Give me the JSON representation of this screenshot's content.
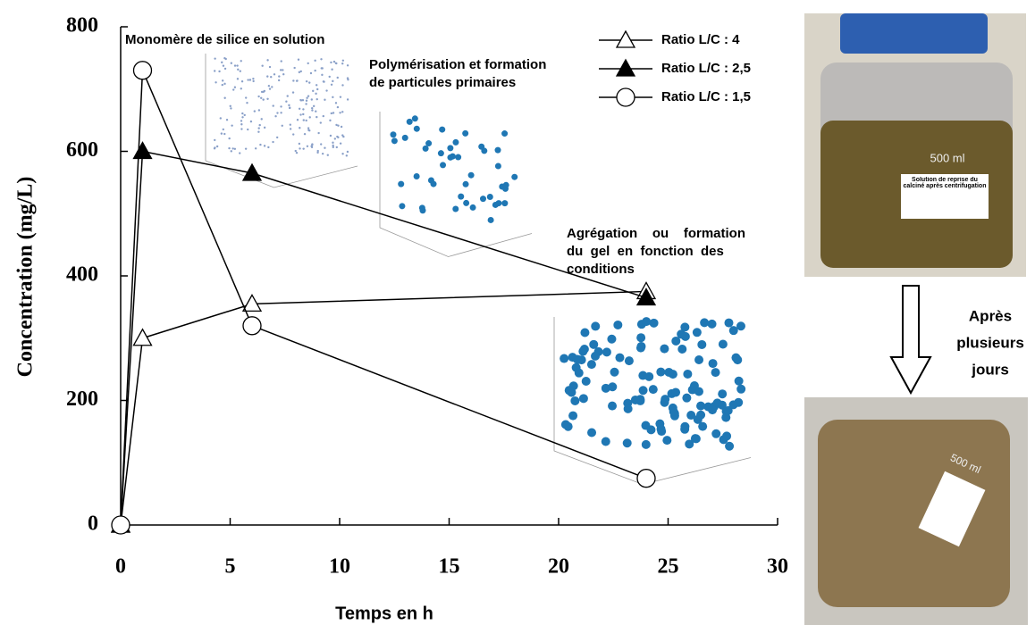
{
  "chart_data": {
    "type": "line",
    "xlabel": "Temps en h",
    "ylabel": "Concentration (mg/L)",
    "xlim": [
      0,
      30
    ],
    "ylim": [
      0,
      800
    ],
    "xticks": [
      0,
      5,
      10,
      15,
      20,
      25,
      30
    ],
    "yticks": [
      0,
      200,
      400,
      600,
      800
    ],
    "legend": "upper right",
    "series": [
      {
        "name": "Ratio L/C : 4",
        "marker": "triangle",
        "filled": false,
        "color": "#000000",
        "x": [
          0,
          1,
          6,
          24
        ],
        "values": [
          0,
          300,
          355,
          375
        ]
      },
      {
        "name": "Ratio L/C : 2,5",
        "marker": "triangle",
        "filled": true,
        "color": "#000000",
        "x": [
          0,
          1,
          6,
          24
        ],
        "values": [
          0,
          600,
          565,
          365
        ]
      },
      {
        "name": "Ratio L/C : 1,5",
        "marker": "circle",
        "filled": false,
        "color": "#000000",
        "x": [
          0,
          1,
          6,
          24
        ],
        "values": [
          0,
          730,
          320,
          75
        ]
      }
    ],
    "annotations": [
      [
        "Monomère de silice en solution"
      ],
      [
        "Polymérisation et formation",
        "de particules primaires"
      ],
      [
        "Agrégation    ou    formation",
        "du  gel  en  fonction  des",
        "conditions"
      ]
    ]
  },
  "side_panel": {
    "arrow_label": [
      "Après",
      "plusieurs",
      "jours"
    ],
    "photo_labels": [
      "500 ml",
      "Solution de reprise du calciné après centrifugation"
    ]
  }
}
